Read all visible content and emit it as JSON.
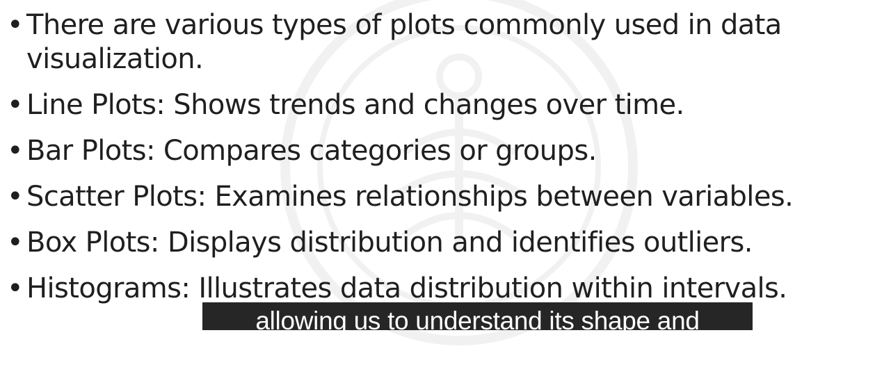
{
  "bullets": [
    "There are various types of plots commonly used in data visualization.",
    "Line Plots: Shows trends and changes over time.",
    "Bar Plots: Compares categories or groups.",
    "Scatter Plots: Examines relationships between variables.",
    "Box Plots: Displays distribution and identifies outliers.",
    "Histograms: Illustrates data distribution within intervals."
  ],
  "bullet_symbol": "•",
  "caption": "allowing us to understand its shape and",
  "colors": {
    "text": "#1f1f1f",
    "background": "#ffffff",
    "caption_bg": "#262626",
    "caption_text": "#ffffff"
  },
  "icons": {
    "watermark": "emblem-watermark-icon"
  }
}
